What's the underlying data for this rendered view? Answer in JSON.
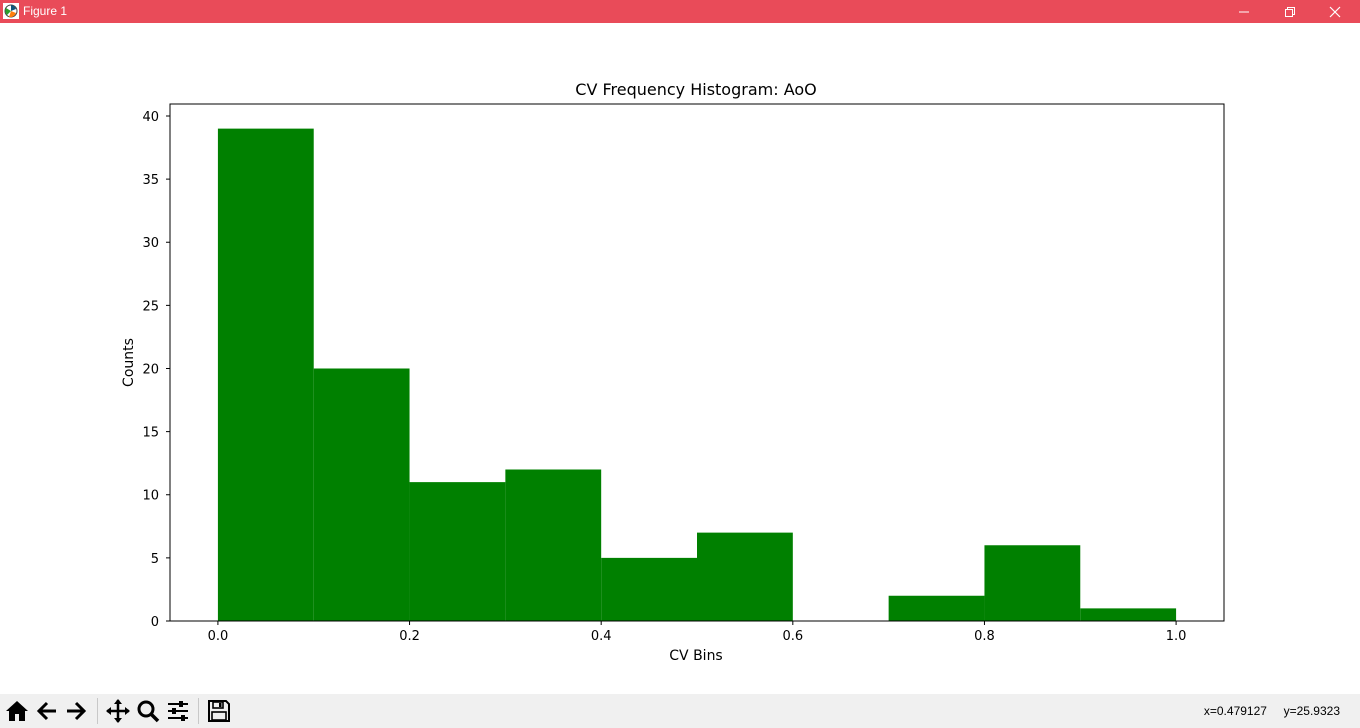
{
  "window": {
    "title": "Figure 1",
    "controls": [
      "minimize",
      "restore",
      "close"
    ]
  },
  "toolbar": {
    "buttons": [
      {
        "name": "home",
        "icon": "home-icon"
      },
      {
        "name": "back",
        "icon": "arrow-left-icon"
      },
      {
        "name": "forward",
        "icon": "arrow-right-icon"
      },
      {
        "name": "pan",
        "icon": "move-icon"
      },
      {
        "name": "zoom",
        "icon": "magnifier-icon"
      },
      {
        "name": "configure-subplots",
        "icon": "sliders-icon"
      },
      {
        "name": "save",
        "icon": "floppy-disk-icon"
      }
    ],
    "coords": {
      "x": "x=0.479127",
      "y": "y=25.9323"
    }
  },
  "colors": {
    "titlebar": "#e94b59",
    "bar": "#008000",
    "toolbar": "#f0f0f0"
  },
  "chart_data": {
    "type": "bar",
    "title": "CV Frequency Histogram: AoO",
    "xlabel": "CV Bins",
    "ylabel": "Counts",
    "bins": [
      {
        "start": 0.0,
        "end": 0.1,
        "count": 39
      },
      {
        "start": 0.1,
        "end": 0.2,
        "count": 20
      },
      {
        "start": 0.2,
        "end": 0.3,
        "count": 11
      },
      {
        "start": 0.3,
        "end": 0.4,
        "count": 12
      },
      {
        "start": 0.4,
        "end": 0.5,
        "count": 5
      },
      {
        "start": 0.5,
        "end": 0.6,
        "count": 7
      },
      {
        "start": 0.6,
        "end": 0.7,
        "count": 0
      },
      {
        "start": 0.7,
        "end": 0.8,
        "count": 2
      },
      {
        "start": 0.8,
        "end": 0.9,
        "count": 6
      },
      {
        "start": 0.9,
        "end": 1.0,
        "count": 1
      }
    ],
    "xlim": [
      -0.05,
      1.05
    ],
    "ylim": [
      0,
      40.95
    ],
    "xticks": [
      0.0,
      0.2,
      0.4,
      0.6,
      0.8,
      1.0
    ],
    "xtick_labels": [
      "0.0",
      "0.2",
      "0.4",
      "0.6",
      "0.8",
      "1.0"
    ],
    "yticks": [
      0,
      5,
      10,
      15,
      20,
      25,
      30,
      35,
      40
    ],
    "ytick_labels": [
      "0",
      "5",
      "10",
      "15",
      "20",
      "25",
      "30",
      "35",
      "40"
    ],
    "grid": false,
    "legend": "none"
  }
}
